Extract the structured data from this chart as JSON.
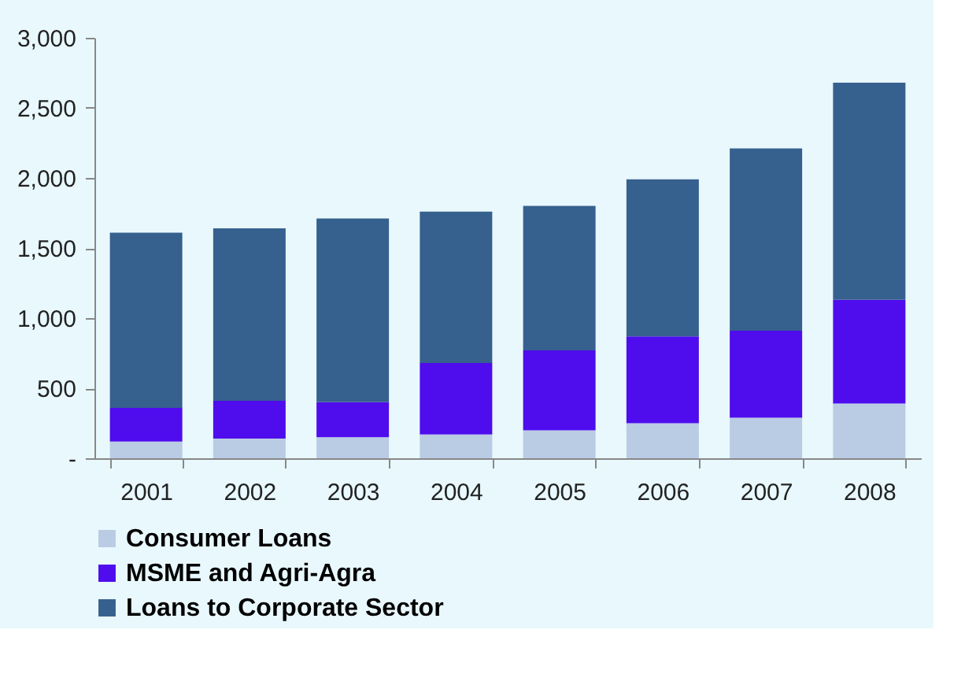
{
  "chart_data": {
    "type": "bar",
    "stacked": true,
    "categories": [
      "2001",
      "2002",
      "2003",
      "2004",
      "2005",
      "2006",
      "2007",
      "2008"
    ],
    "series": [
      {
        "name": "Consumer Loans",
        "color": "#b9cce4",
        "values": [
          120,
          140,
          150,
          170,
          200,
          250,
          290,
          390
        ]
      },
      {
        "name": "MSME and Agri-Agra",
        "color": "#4f0ced",
        "values": [
          240,
          270,
          250,
          510,
          570,
          620,
          620,
          740
        ]
      },
      {
        "name": "Loans to Corporate Sector",
        "color": "#36608e",
        "values": [
          1250,
          1230,
          1310,
          1080,
          1030,
          1120,
          1300,
          1550
        ]
      }
    ],
    "ylim": [
      0,
      3000
    ],
    "yticks": [
      {
        "value": 0,
        "label": "-"
      },
      500,
      {
        "value": 1000,
        "label": "1,000"
      },
      {
        "value": 1500,
        "label": "1,500"
      },
      {
        "value": 2000,
        "label": "2,000"
      },
      {
        "value": 2500,
        "label": "2,500"
      },
      {
        "value": 3000,
        "label": "3,000"
      }
    ],
    "grid": false,
    "legend": "bottom"
  }
}
